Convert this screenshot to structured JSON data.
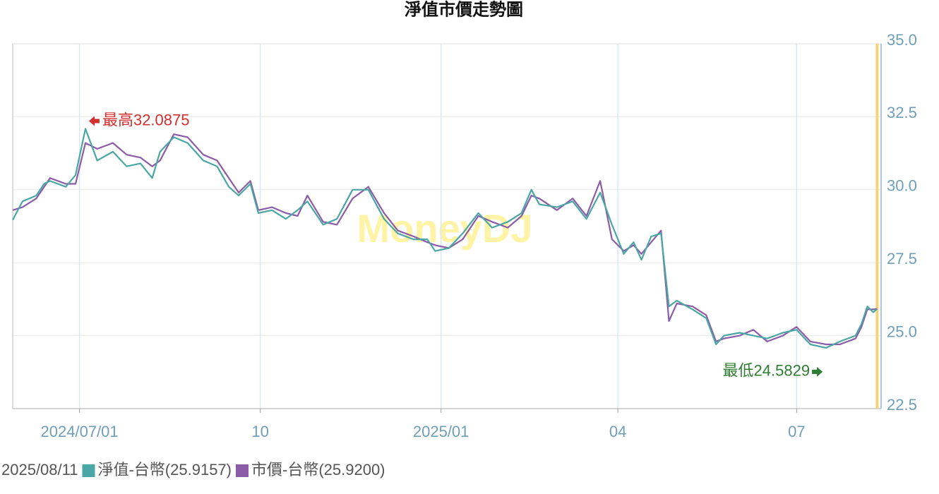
{
  "chart_data": {
    "type": "line",
    "title": "淨值市價走勢圖",
    "watermark": "MoneyDJ",
    "x": [
      "2024/05/28",
      "2024/06/02",
      "2024/06/09",
      "2024/06/13",
      "2024/06/16",
      "2024/06/24",
      "2024/06/29",
      "2024/07/04",
      "2024/07/10",
      "2024/07/18",
      "2024/07/25",
      "2024/08/01",
      "2024/08/07",
      "2024/08/11",
      "2024/08/18",
      "2024/08/25",
      "2024/09/02",
      "2024/09/09",
      "2024/09/15",
      "2024/09/20",
      "2024/09/26",
      "2024/09/30",
      "2024/10/07",
      "2024/10/14",
      "2024/10/20",
      "2024/10/25",
      "2024/11/02",
      "2024/11/09",
      "2024/11/17",
      "2024/11/25",
      "2024/12/03",
      "2024/12/10",
      "2024/12/18",
      "2024/12/25",
      "2024/12/29",
      "2025/01/05",
      "2025/01/12",
      "2025/01/20",
      "2025/01/27",
      "2025/02/04",
      "2025/02/11",
      "2025/02/16",
      "2025/02/20",
      "2025/03/01",
      "2025/03/09",
      "2025/03/16",
      "2025/03/23",
      "2025/03/29",
      "2025/04/04",
      "2025/04/09",
      "2025/04/13",
      "2025/04/18",
      "2025/04/23",
      "2025/04/27",
      "2025/05/01",
      "2025/05/09",
      "2025/05/16",
      "2025/05/21",
      "2025/05/25",
      "2025/06/02",
      "2025/06/09",
      "2025/06/16",
      "2025/06/24",
      "2025/07/01",
      "2025/07/08",
      "2025/07/16",
      "2025/07/23",
      "2025/07/31",
      "2025/08/03",
      "2025/08/06",
      "2025/08/09",
      "2025/08/11"
    ],
    "series": [
      {
        "name": "淨值-台幣(25.9157)",
        "color": "#4aa7a5",
        "values": [
          28.96,
          29.6,
          29.8,
          30.2,
          30.3,
          30.1,
          30.5,
          32.0875,
          31.0,
          31.3,
          30.8,
          30.9,
          30.4,
          31.3,
          31.8,
          31.6,
          31.0,
          30.8,
          30.1,
          29.8,
          30.2,
          29.2,
          29.3,
          29.0,
          29.3,
          29.6,
          28.8,
          29.0,
          30.0,
          30.0,
          29.0,
          28.5,
          28.3,
          28.3,
          27.9,
          28.0,
          28.5,
          29.2,
          28.7,
          28.9,
          29.2,
          30.0,
          29.5,
          29.4,
          29.6,
          29.0,
          29.9,
          28.8,
          27.8,
          28.2,
          27.6,
          28.4,
          28.5,
          26.0,
          26.2,
          25.9,
          25.6,
          24.7,
          25.0,
          25.1,
          25.0,
          24.9,
          25.1,
          25.2,
          24.7,
          24.5829,
          24.8,
          25.0,
          25.4,
          26.0,
          25.8,
          25.9157
        ]
      },
      {
        "name": "市價-台幣(25.9200)",
        "color": "#8c5ca8",
        "values": [
          29.3,
          29.4,
          29.7,
          30.1,
          30.4,
          30.2,
          30.2,
          31.6,
          31.4,
          31.6,
          31.2,
          31.1,
          30.8,
          31.0,
          31.9,
          31.8,
          31.2,
          31.0,
          30.4,
          29.9,
          30.3,
          29.3,
          29.4,
          29.2,
          29.1,
          29.8,
          28.9,
          28.8,
          29.7,
          30.1,
          29.2,
          28.6,
          28.4,
          28.2,
          28.1,
          28.0,
          28.3,
          29.1,
          28.9,
          28.7,
          29.1,
          29.8,
          29.7,
          29.3,
          29.7,
          29.1,
          30.3,
          28.3,
          27.9,
          28.1,
          27.8,
          28.2,
          28.6,
          25.5,
          26.1,
          26.0,
          25.7,
          24.8,
          24.9,
          25.0,
          25.2,
          24.8,
          25.0,
          25.3,
          24.8,
          24.7,
          24.7,
          24.9,
          25.3,
          25.9,
          25.9,
          25.92
        ]
      }
    ],
    "xlim": [
      "2024/05/28",
      "2025/08/13"
    ],
    "xticks": [
      "2024/07/01",
      {
        "value": "2024/10/01",
        "label": "10"
      },
      {
        "value": "2025/01/01",
        "label": "2025/01"
      },
      {
        "value": "2025/04/01",
        "label": "04"
      },
      {
        "value": "2025/07/01",
        "label": "07"
      }
    ],
    "ylim": [
      22.5,
      35
    ],
    "yticks": [
      22.5,
      {
        "value": 25,
        "label": "25.0"
      },
      27.5,
      {
        "value": 30,
        "label": "30.0"
      },
      32.5,
      {
        "value": 35,
        "label": "35.0"
      }
    ],
    "y_axis_side": "right",
    "grid": true,
    "cursor_date": "2025/08/11",
    "annotations": [
      {
        "label": "最高32.0875",
        "x": "2024/07/04",
        "value": 32.0875,
        "color": "#d32f2f"
      },
      {
        "label": "最低24.5829",
        "x": "2025/07/16",
        "value": 24.5829,
        "color": "#2e7d32"
      }
    ]
  }
}
